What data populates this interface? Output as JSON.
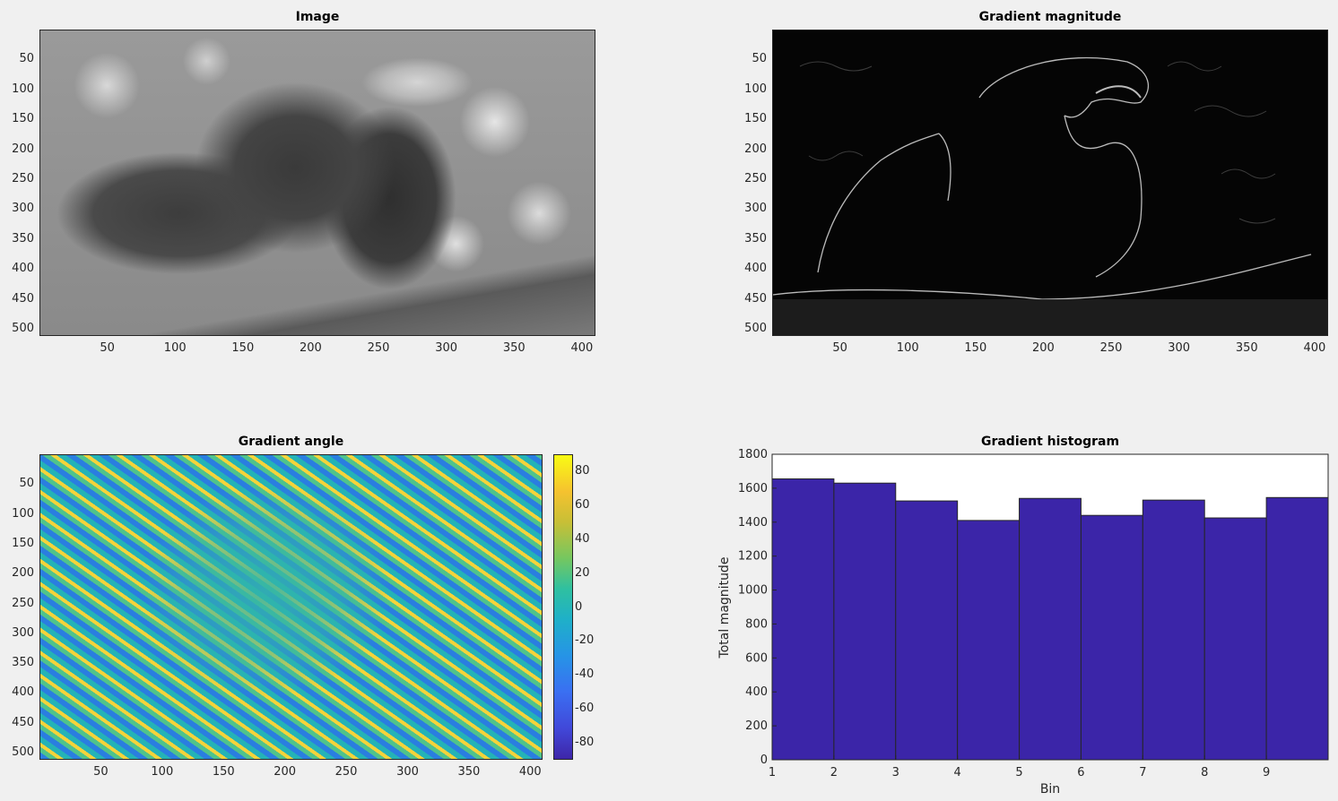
{
  "panels": {
    "image": {
      "title": "Image"
    },
    "magnitude": {
      "title": "Gradient magnitude"
    },
    "angle": {
      "title": "Gradient angle"
    },
    "histogram": {
      "title": "Gradient histogram"
    }
  },
  "image_axes": {
    "x_ticks": [
      "50",
      "100",
      "150",
      "200",
      "250",
      "300",
      "350",
      "400"
    ],
    "y_ticks": [
      "50",
      "100",
      "150",
      "200",
      "250",
      "300",
      "350",
      "400",
      "450",
      "500"
    ]
  },
  "colorbar": {
    "ticks": [
      "80",
      "60",
      "40",
      "20",
      "0",
      "-20",
      "-40",
      "-60",
      "-80"
    ]
  },
  "chart_data": {
    "type": "bar",
    "title": "Gradient histogram",
    "xlabel": "Bin",
    "ylabel": "Total magnitude",
    "categories": [
      1,
      2,
      3,
      4,
      5,
      6,
      7,
      8,
      9
    ],
    "values": [
      1655,
      1630,
      1525,
      1410,
      1540,
      1440,
      1530,
      1425,
      1545
    ],
    "ylim": [
      0,
      1800
    ],
    "xlim": [
      1,
      10
    ],
    "x_ticks": [
      "1",
      "2",
      "3",
      "4",
      "5",
      "6",
      "7",
      "8",
      "9"
    ],
    "y_ticks": [
      "0",
      "200",
      "400",
      "600",
      "800",
      "1000",
      "1200",
      "1400",
      "1600",
      "1800"
    ],
    "bar_color": "#3b25a8",
    "edge_color": "#262626",
    "grid": false
  }
}
